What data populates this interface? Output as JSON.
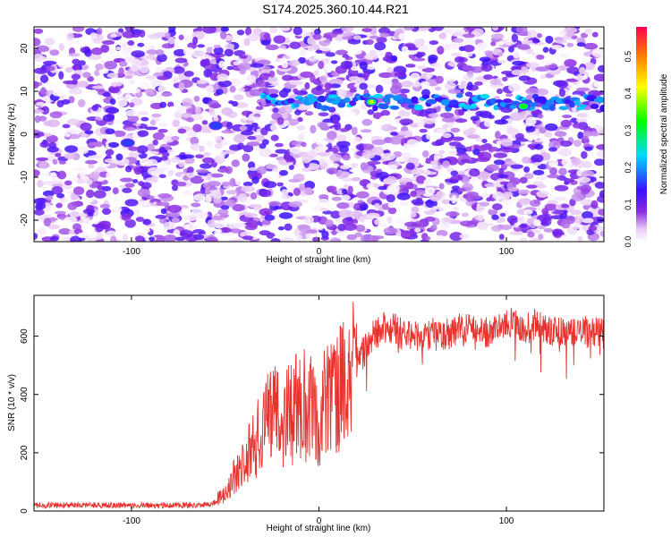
{
  "title": "S174.2025.360.10.44.R21",
  "chart_data": [
    {
      "type": "heatmap",
      "xlabel": "Height of straight line (km)",
      "ylabel": "Frequency (Hz)",
      "xlim": [
        -152,
        152
      ],
      "ylim": [
        -25,
        25
      ],
      "x_ticks": [
        -100,
        0,
        100
      ],
      "y_ticks": [
        -20,
        -10,
        0,
        10,
        20
      ],
      "colorbar": {
        "label": "Normalized spectral amplitude",
        "range": [
          0,
          0.58
        ],
        "ticks": [
          0,
          0.1,
          0.2,
          0.3,
          0.4,
          0.5
        ],
        "colors": [
          "#ffffff",
          "#e8c8f4",
          "#8a2be2",
          "#3a10ff",
          "#00d8ff",
          "#00ff00",
          "#ffff00",
          "#ff8000",
          "#ff0050"
        ]
      },
      "features": [
        {
          "x_range": [
            -30,
            152
          ],
          "frequency": 7.5,
          "description_value": 0.2
        },
        {
          "x": 28,
          "frequency": 7.5,
          "amplitude": 0.4
        },
        {
          "x": 109,
          "frequency": 6.5,
          "amplitude": 0.38
        },
        {
          "x": -55,
          "frequency": 2,
          "amplitude": 0.2
        },
        {
          "x": -102,
          "frequency": -2,
          "amplitude": 0.15
        }
      ],
      "grid": false
    },
    {
      "type": "line",
      "xlabel": "Height of straight line (km)",
      "ylabel": "SNR (10 * v/v)",
      "xlim": [
        -152,
        152
      ],
      "ylim": [
        0,
        740
      ],
      "x_ticks": [
        -100,
        0,
        100
      ],
      "y_ticks": [
        0,
        200,
        400,
        600
      ],
      "line_color": "#e8322e",
      "grid": false,
      "series": [
        {
          "x": [
            -152,
            -140,
            -120,
            -100,
            -80,
            -60,
            -55,
            -50,
            -45,
            -40,
            -35,
            -30,
            -25,
            -20,
            -15,
            -10,
            -5,
            0,
            5,
            10,
            15,
            20,
            25,
            30,
            35,
            40,
            45,
            50,
            55,
            60,
            65,
            70,
            75,
            80,
            85,
            90,
            95,
            100,
            105,
            110,
            115,
            120,
            125,
            130,
            135,
            140,
            145,
            152
          ],
          "y": [
            20,
            20,
            20,
            20,
            20,
            20,
            30,
            60,
            120,
            160,
            220,
            300,
            330,
            300,
            340,
            380,
            360,
            330,
            390,
            420,
            440,
            500,
            560,
            610,
            630,
            630,
            600,
            610,
            600,
            610,
            600,
            610,
            630,
            620,
            630,
            610,
            620,
            640,
            650,
            620,
            640,
            630,
            620,
            620,
            610,
            620,
            610,
            610
          ]
        }
      ]
    }
  ]
}
